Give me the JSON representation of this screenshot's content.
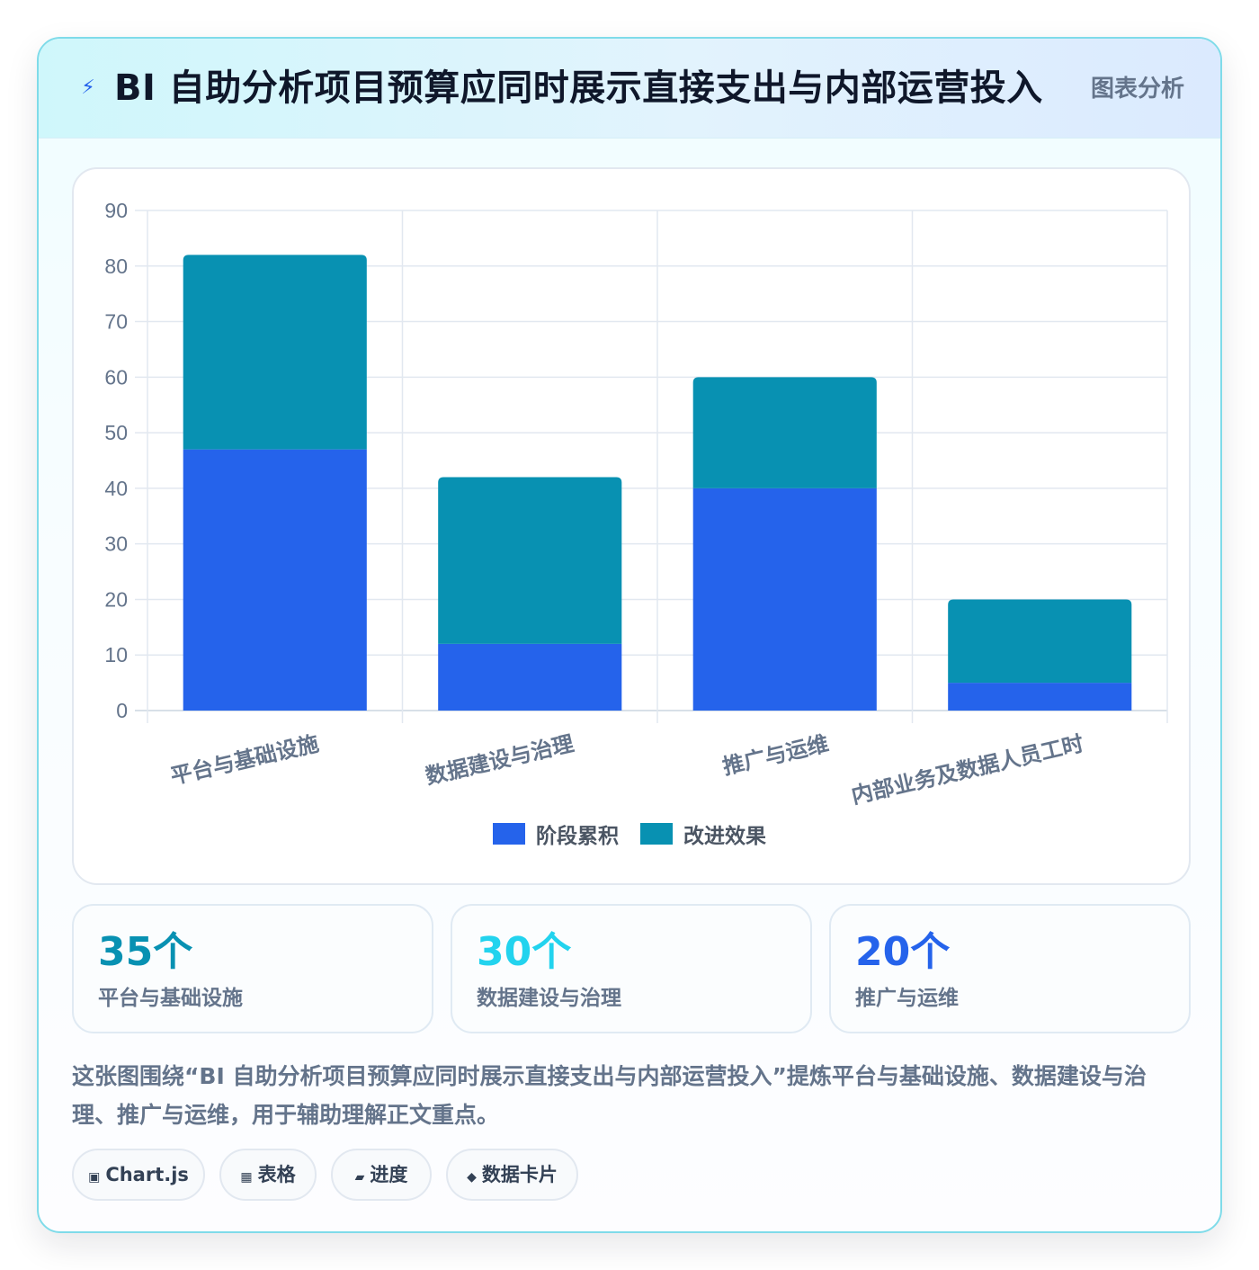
{
  "header": {
    "icon": "lightning-icon",
    "title": "BI 自助分析项目预算应同时展示直接支出与内部运营投入",
    "tag": "图表分析"
  },
  "chart_data": {
    "type": "bar",
    "stacked": true,
    "categories": [
      "平台与基础设施",
      "数据建设与治理",
      "推广与运维",
      "内部业务及数据人员工时"
    ],
    "series": [
      {
        "name": "阶段累积",
        "values": [
          47,
          12,
          40,
          5
        ],
        "color": "#2563eb"
      },
      {
        "name": "改进效果",
        "values": [
          35,
          30,
          20,
          15
        ],
        "color": "#0891b2"
      }
    ],
    "ylim": [
      0,
      90
    ],
    "yticks": [
      0,
      10,
      20,
      30,
      40,
      50,
      60,
      70,
      80,
      90
    ],
    "grid": true,
    "legend": "bottom"
  },
  "stats": [
    {
      "value": "35个",
      "label": "平台与基础设施",
      "color": "#0891b2"
    },
    {
      "value": "30个",
      "label": "数据建设与治理",
      "color": "#22d3ee"
    },
    {
      "value": "20个",
      "label": "推广与运维",
      "color": "#2563eb"
    }
  ],
  "description": "这张图围绕“BI 自助分析项目预算应同时展示直接支出与内部运营投入”提炼平台与基础设施、数据建设与治理、推广与运维，用于辅助理解正文重点。",
  "chips": [
    {
      "icon": "square-icon",
      "glyph": "▣",
      "label": "Chart.js"
    },
    {
      "icon": "grid-icon",
      "glyph": "▦",
      "label": "表格"
    },
    {
      "icon": "progress-icon",
      "glyph": "▰",
      "label": "进度"
    },
    {
      "icon": "diamond-icon",
      "glyph": "◆",
      "label": "数据卡片"
    }
  ]
}
